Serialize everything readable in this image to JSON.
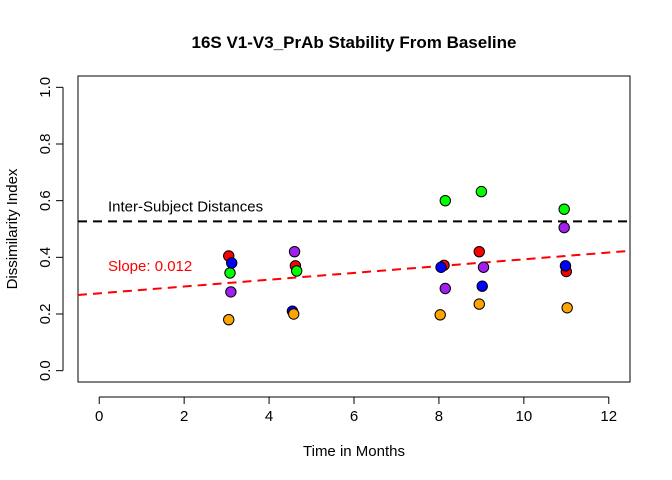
{
  "chart_data": {
    "type": "scatter",
    "title": "16S V1-V3_PrAb Stability From Baseline",
    "xlabel": "Time in Months",
    "ylabel": "Dissimilarity Index",
    "xlim": [
      -0.5,
      12.5
    ],
    "ylim": [
      -0.04,
      1.04
    ],
    "xticks": [
      0,
      2,
      4,
      6,
      8,
      10,
      12
    ],
    "yticks": [
      0.0,
      0.2,
      0.4,
      0.6,
      0.8,
      1.0
    ],
    "xtick_labels": [
      "0",
      "2",
      "4",
      "6",
      "8",
      "10",
      "12"
    ],
    "ytick_labels": [
      "0.0",
      "0.2",
      "0.4",
      "0.6",
      "0.8",
      "1.0"
    ],
    "grid": false,
    "series": [
      {
        "color": "#ff0000",
        "points": [
          [
            3.05,
            0.405
          ],
          [
            4.62,
            0.37
          ],
          [
            8.12,
            0.372
          ],
          [
            8.95,
            0.42
          ],
          [
            11.0,
            0.35
          ]
        ]
      },
      {
        "color": "#00ff00",
        "points": [
          [
            3.08,
            0.345
          ],
          [
            4.65,
            0.352
          ],
          [
            8.15,
            0.6
          ],
          [
            9.0,
            0.632
          ],
          [
            10.95,
            0.57
          ]
        ]
      },
      {
        "color": "#0000ff",
        "points": [
          [
            3.12,
            0.38
          ],
          [
            4.55,
            0.21
          ],
          [
            8.05,
            0.365
          ],
          [
            9.02,
            0.298
          ],
          [
            10.98,
            0.37
          ]
        ]
      },
      {
        "color": "#a020f0",
        "points": [
          [
            3.1,
            0.278
          ],
          [
            4.6,
            0.42
          ],
          [
            8.15,
            0.29
          ],
          [
            9.05,
            0.365
          ],
          [
            10.95,
            0.505
          ]
        ]
      },
      {
        "color": "#ffa500",
        "points": [
          [
            3.05,
            0.18
          ],
          [
            4.58,
            0.2
          ],
          [
            8.03,
            0.197
          ],
          [
            8.95,
            0.235
          ],
          [
            11.02,
            0.222
          ]
        ]
      }
    ],
    "reference_line": {
      "label": "Inter-Subject Distances",
      "y": 0.527,
      "color": "#000000",
      "style": "dashed"
    },
    "trend_line": {
      "label": "Slope: 0.012",
      "slope": 0.012,
      "intercept": 0.273,
      "color": "#ff0000",
      "style": "dashed"
    }
  }
}
